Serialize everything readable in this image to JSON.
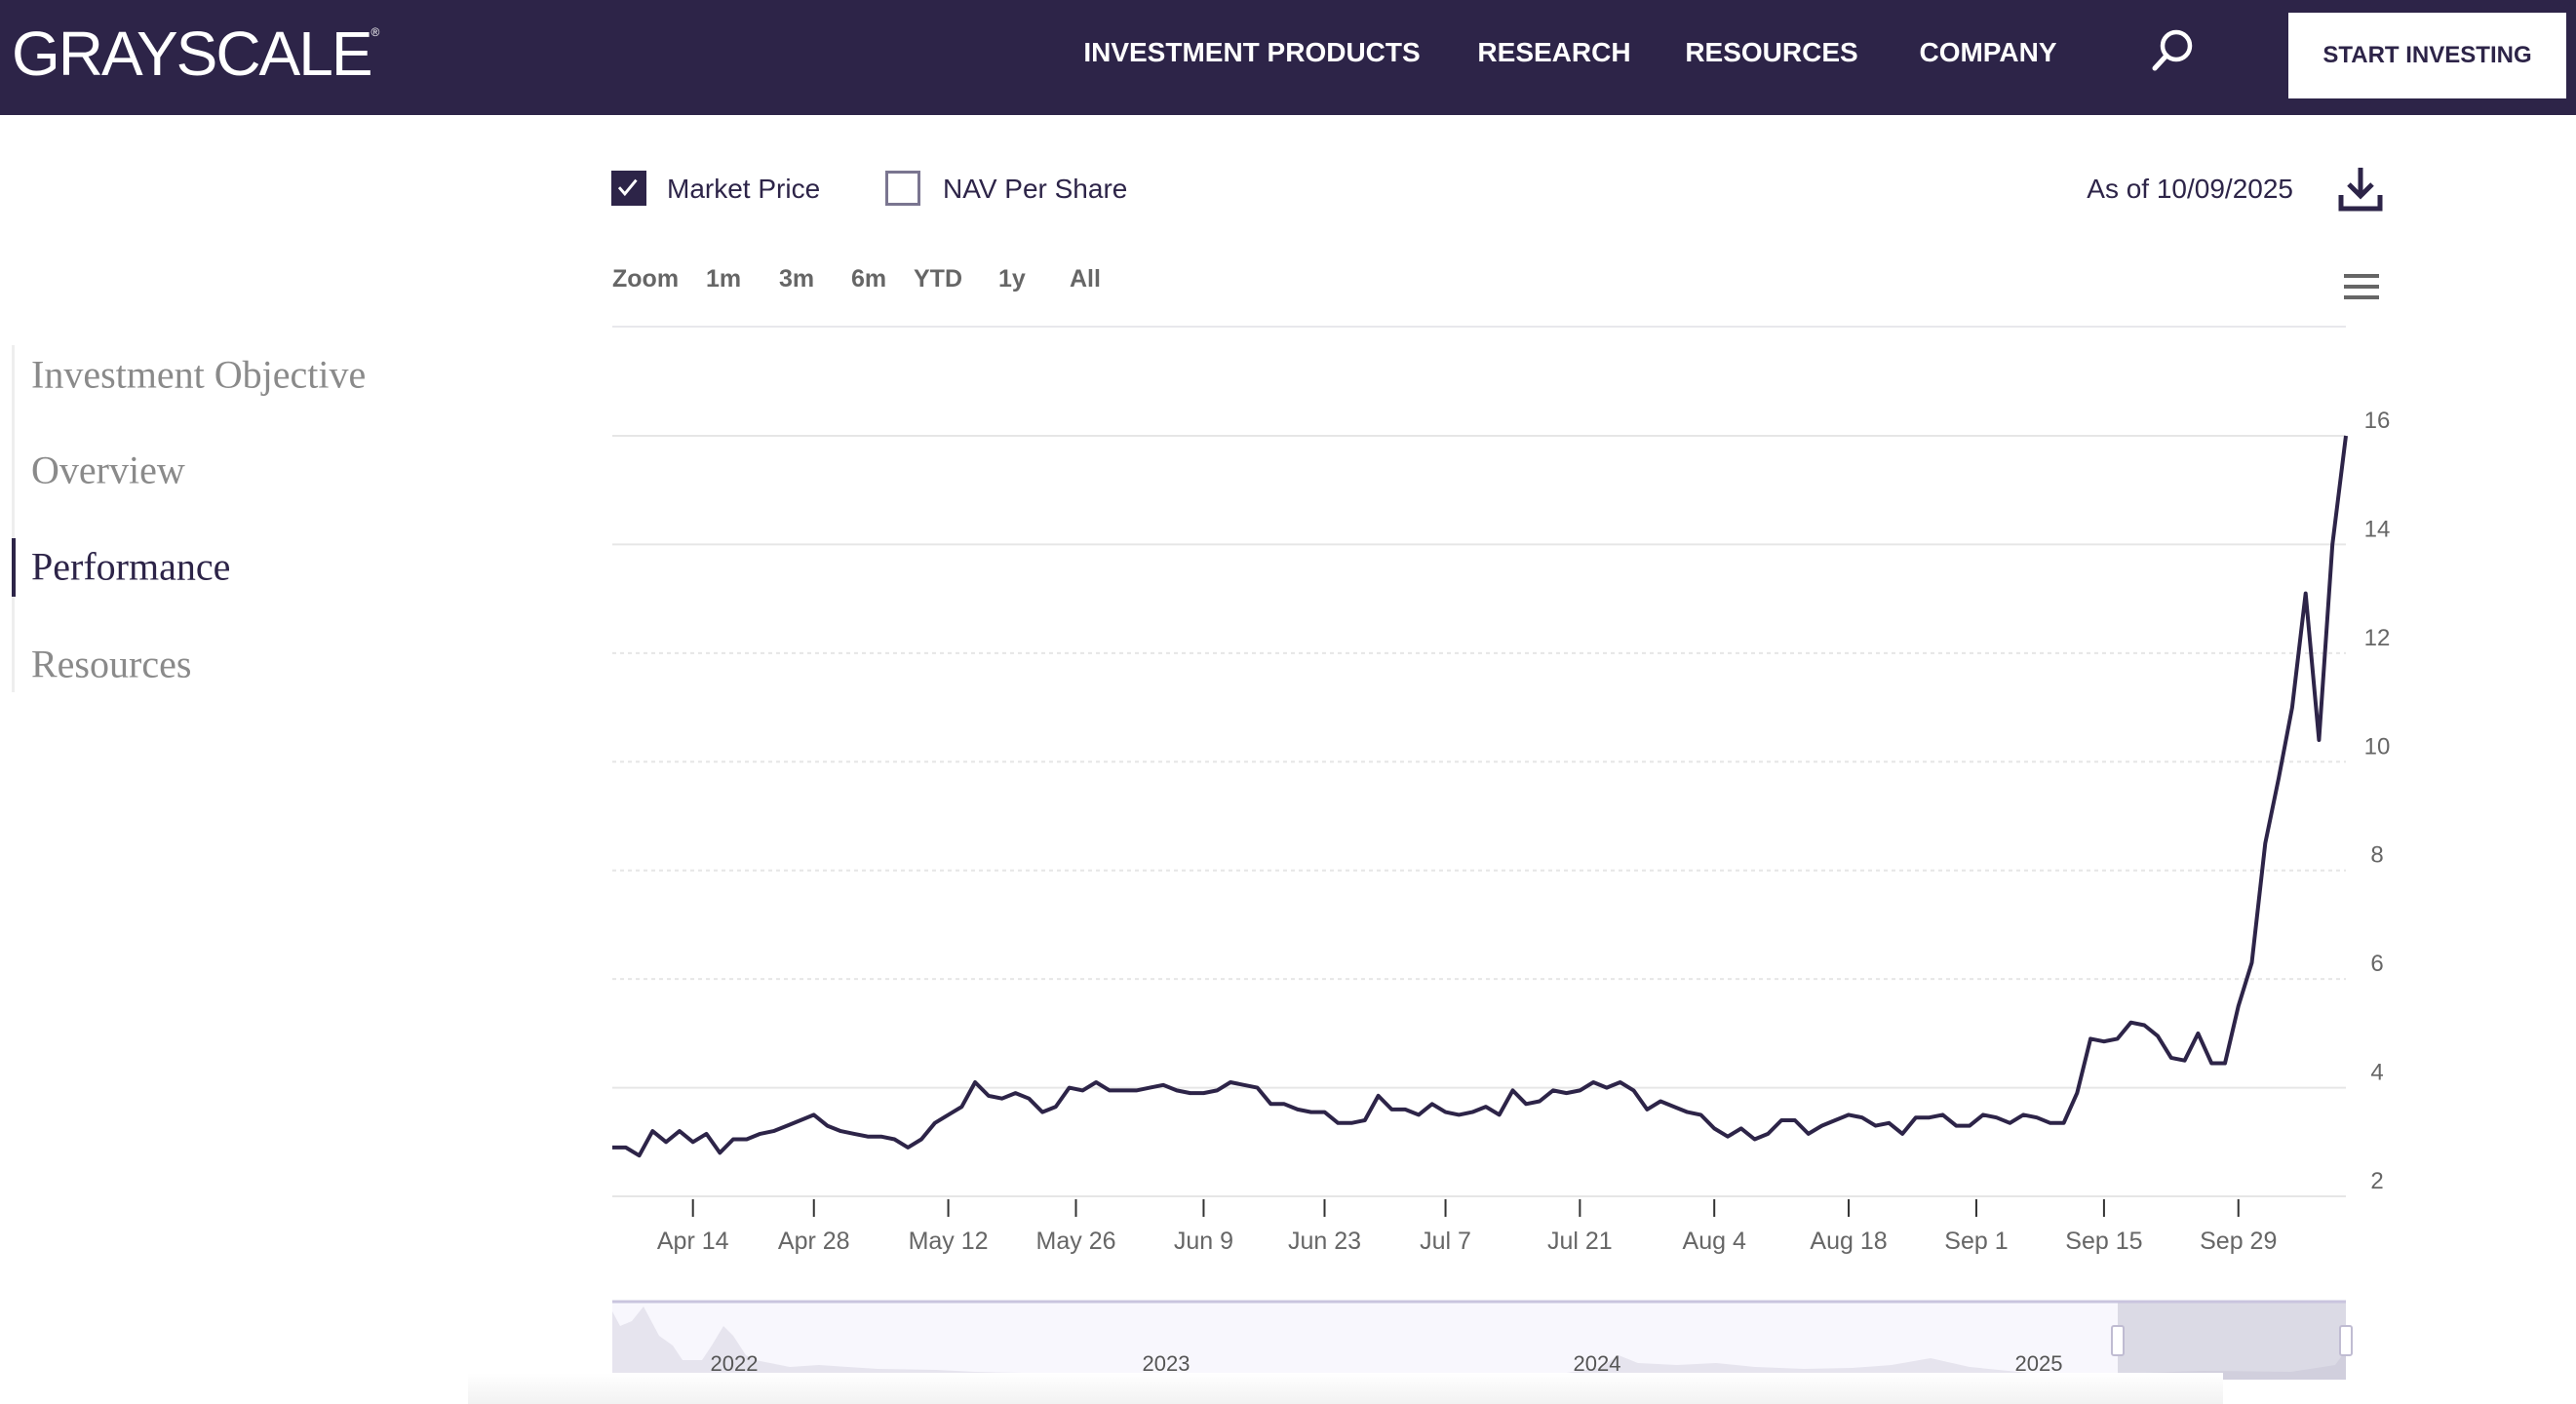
{
  "header": {
    "logo": "GRAYSCALE",
    "nav": [
      "INVESTMENT PRODUCTS",
      "RESEARCH",
      "RESOURCES",
      "COMPANY"
    ],
    "search_icon": "search-icon",
    "cta": "START INVESTING",
    "background": "#2d2448"
  },
  "sidebar": {
    "items": [
      {
        "label": "Investment Objective",
        "active": false
      },
      {
        "label": "Overview",
        "active": false
      },
      {
        "label": "Performance",
        "active": true
      },
      {
        "label": "Resources",
        "active": false
      }
    ]
  },
  "controls": {
    "series_toggles": [
      {
        "label": "Market Price",
        "checked": true
      },
      {
        "label": "NAV Per Share",
        "checked": false
      }
    ],
    "as_of": "As of 10/09/2025",
    "download_icon": "download-icon",
    "zoom_label": "Zoom",
    "zoom_buttons": [
      "1m",
      "3m",
      "6m",
      "YTD",
      "1y",
      "All"
    ],
    "menu_icon": "hamburger-menu-icon"
  },
  "chart_data": {
    "type": "line",
    "line_color": "#2d2448",
    "ylim": [
      2,
      16
    ],
    "yticks": [
      2,
      4,
      6,
      8,
      10,
      12,
      14,
      16
    ],
    "x_tick_labels": [
      "Apr 14",
      "Apr 28",
      "May 12",
      "May 26",
      "Jun 9",
      "Jun 23",
      "Jul 7",
      "Jul 21",
      "Aug 4",
      "Aug 18",
      "Sep 1",
      "Sep 15",
      "Sep 29"
    ],
    "grid": true,
    "series": [
      {
        "x": [
          "Apr 4",
          "Apr 7",
          "Apr 8",
          "Apr 9",
          "Apr 10",
          "Apr 11",
          "Apr 14",
          "Apr 15",
          "Apr 16",
          "Apr 17",
          "Apr 21",
          "Apr 22",
          "Apr 23",
          "Apr 24",
          "Apr 25",
          "Apr 28",
          "Apr 29",
          "Apr 30",
          "May 1",
          "May 2",
          "May 5",
          "May 6",
          "May 7",
          "May 8",
          "May 9",
          "May 12",
          "May 13",
          "May 14",
          "May 15",
          "May 16",
          "May 19",
          "May 20",
          "May 21",
          "May 22",
          "May 23",
          "May 27",
          "May 28",
          "May 29",
          "May 30",
          "Jun 2",
          "Jun 3",
          "Jun 4",
          "Jun 5",
          "Jun 6",
          "Jun 9",
          "Jun 10",
          "Jun 11",
          "Jun 12",
          "Jun 13",
          "Jun 16",
          "Jun 17",
          "Jun 18",
          "Jun 20",
          "Jun 23",
          "Jun 24",
          "Jun 25",
          "Jun 26",
          "Jun 27",
          "Jun 30",
          "Jul 1",
          "Jul 2",
          "Jul 3",
          "Jul 7",
          "Jul 8",
          "Jul 9",
          "Jul 10",
          "Jul 11",
          "Jul 14",
          "Jul 15",
          "Jul 16",
          "Jul 17",
          "Jul 18",
          "Jul 21",
          "Jul 22",
          "Jul 23",
          "Jul 24",
          "Jul 25",
          "Jul 28",
          "Jul 29",
          "Jul 30",
          "Jul 31",
          "Aug 1",
          "Aug 4",
          "Aug 5",
          "Aug 6",
          "Aug 7",
          "Aug 8",
          "Aug 11",
          "Aug 12",
          "Aug 13",
          "Aug 14",
          "Aug 15",
          "Aug 18",
          "Aug 19",
          "Aug 20",
          "Aug 21",
          "Aug 22",
          "Aug 25",
          "Aug 26",
          "Aug 27",
          "Aug 28",
          "Aug 29",
          "Sep 2",
          "Sep 3",
          "Sep 4",
          "Sep 5",
          "Sep 8",
          "Sep 9",
          "Sep 10",
          "Sep 11",
          "Sep 12",
          "Sep 15",
          "Sep 16",
          "Sep 17",
          "Sep 18",
          "Sep 19",
          "Sep 22",
          "Sep 23",
          "Sep 24",
          "Sep 25",
          "Sep 26",
          "Sep 29",
          "Sep 30",
          "Oct 1",
          "Oct 2",
          "Oct 3",
          "Oct 6",
          "Oct 7",
          "Oct 8",
          "Oct 9"
        ],
        "values": [
          2.9,
          2.9,
          2.75,
          3.2,
          3.0,
          3.2,
          3.0,
          3.15,
          2.8,
          3.05,
          3.05,
          3.15,
          3.2,
          3.3,
          3.4,
          3.5,
          3.3,
          3.2,
          3.15,
          3.1,
          3.1,
          3.05,
          2.9,
          3.05,
          3.35,
          3.5,
          3.65,
          4.1,
          3.85,
          3.8,
          3.9,
          3.8,
          3.55,
          3.65,
          4.0,
          3.95,
          4.1,
          3.95,
          3.95,
          3.95,
          4.0,
          4.05,
          3.95,
          3.9,
          3.9,
          3.95,
          4.1,
          4.05,
          4.0,
          3.7,
          3.7,
          3.6,
          3.55,
          3.55,
          3.35,
          3.35,
          3.4,
          3.85,
          3.6,
          3.6,
          3.5,
          3.7,
          3.55,
          3.5,
          3.55,
          3.65,
          3.5,
          3.95,
          3.7,
          3.75,
          3.95,
          3.9,
          3.95,
          4.1,
          4.0,
          4.1,
          3.95,
          3.6,
          3.75,
          3.65,
          3.55,
          3.5,
          3.25,
          3.1,
          3.25,
          3.05,
          3.15,
          3.4,
          3.4,
          3.15,
          3.3,
          3.4,
          3.5,
          3.45,
          3.3,
          3.35,
          3.15,
          3.45,
          3.45,
          3.5,
          3.3,
          3.3,
          3.5,
          3.45,
          3.35,
          3.5,
          3.45,
          3.35,
          3.35,
          3.9,
          4.9,
          4.85,
          4.9,
          5.2,
          5.15,
          4.95,
          4.55,
          4.5,
          5.0,
          4.45,
          4.45,
          5.5,
          6.3,
          8.5,
          9.7,
          11.0,
          13.1,
          10.4,
          14.0,
          16.0
        ]
      }
    ],
    "navigator": {
      "x_tick_labels": [
        "2022",
        "2023",
        "2024",
        "2025"
      ],
      "selected_range": "Apr 4 – Oct 9"
    }
  }
}
